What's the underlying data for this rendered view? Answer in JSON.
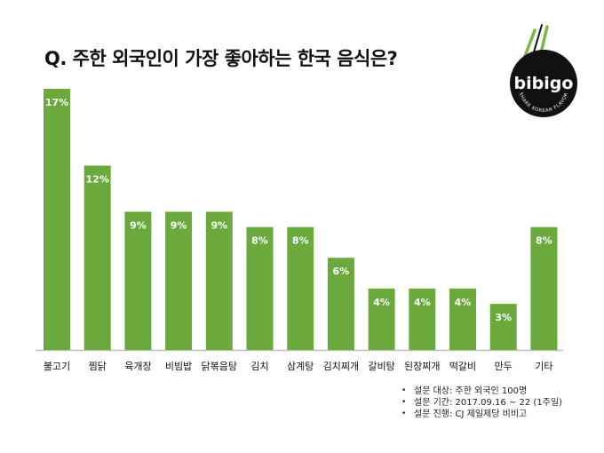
{
  "title": "Q. 주한 외국인이 가장 좋아하는 한국 음식은?",
  "logo": {
    "brand": "bibigo",
    "tagline": "SHARE KOREAN FLAVOR"
  },
  "notes": [
    "설문 대상: 주한 외국인 100명",
    "설문 기간: 2017.09.16 ~ 22 (1주일)",
    "설문 진행: CJ 제일제당 비비고"
  ],
  "colors": {
    "bar": "#6aaa3c",
    "axis": "#bfbfbf",
    "label": "#ffffff",
    "logo_bg": "#111111",
    "logo_accent": "#7ab648"
  },
  "chart_data": {
    "type": "bar",
    "categories": [
      "불고기",
      "찜닭",
      "육개장",
      "비빔밥",
      "닭볶음탕",
      "김치",
      "삼계탕",
      "김치찌개",
      "갈비탕",
      "된장찌개",
      "떡갈비",
      "만두",
      "기타"
    ],
    "values": [
      17,
      12,
      9,
      9,
      9,
      8,
      8,
      6,
      4,
      4,
      4,
      3,
      8
    ],
    "data_labels": [
      "17%",
      "12%",
      "9%",
      "9%",
      "9%",
      "8%",
      "8%",
      "6%",
      "4%",
      "4%",
      "4%",
      "3%",
      "8%"
    ],
    "ylim": [
      0,
      17
    ],
    "grid": false,
    "legend": "none"
  }
}
